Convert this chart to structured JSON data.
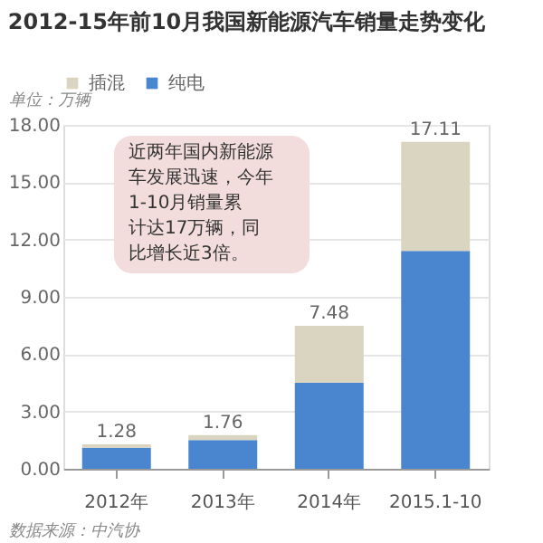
{
  "chart_data": {
    "type": "bar",
    "title": "2012-15年前10月我国新能源汽车销量走势变化",
    "categories": [
      "2012年",
      "2013年",
      "2014年",
      "2015.1-10"
    ],
    "series": [
      {
        "name": "纯电",
        "color": "#4a86d0",
        "values": [
          1.1,
          1.5,
          4.5,
          11.4
        ]
      },
      {
        "name": "插混",
        "color": "#d9d5c0",
        "values": [
          0.18,
          0.26,
          2.98,
          5.71
        ]
      }
    ],
    "stacked": true,
    "totals": [
      "1.28",
      "1.76",
      "7.48",
      "17.11"
    ],
    "ylim": [
      0,
      18
    ],
    "yticks": [
      {
        "value": 0,
        "label": "0.00"
      },
      {
        "value": 3,
        "label": "3.00"
      },
      {
        "value": 6,
        "label": "6.00"
      },
      {
        "value": 9,
        "label": "9.00"
      },
      {
        "value": 12,
        "label": "12.00"
      },
      {
        "value": 15,
        "label": "15.00"
      },
      {
        "value": 18,
        "label": "18.00"
      }
    ],
    "grid": "y",
    "legend": "top",
    "annotations": [
      "单位：万辆",
      "近两年国内新能源车发展迅速，今年1-10月销量累计达17万辆，同比增长近3倍。",
      "数据来源：中汽协"
    ]
  }
}
